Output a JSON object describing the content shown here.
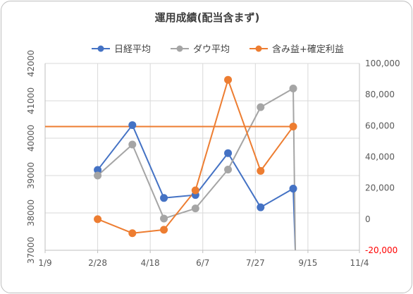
{
  "chart_data": {
    "type": "line",
    "title": "運用成績(配当含まず)",
    "x_tick_labels": [
      "1/9",
      "2/28",
      "4/18",
      "6/7",
      "7/27",
      "9/15",
      "11/4"
    ],
    "x_tick_values": [
      0,
      50,
      100,
      150,
      200,
      250,
      299
    ],
    "xlim": [
      0,
      299
    ],
    "ylim_left": [
      37000,
      42000
    ],
    "y_left_tick_labels": [
      "37000",
      "38000",
      "39000",
      "40000",
      "41000",
      "42000"
    ],
    "ylim_right": [
      -20000,
      100000
    ],
    "y_right_tick_labels": [
      "-20,000",
      "0",
      "20,000",
      "40,000",
      "60,000",
      "80,000",
      "100,000"
    ],
    "grid": true,
    "legend_position": "top",
    "series": [
      {
        "name": "日経平均",
        "axis": "left",
        "color": "#4472c4",
        "marker": true,
        "x": [
          50,
          83,
          113,
          143,
          174,
          205,
          236,
          238
        ],
        "y": [
          39150,
          40350,
          38400,
          38480,
          39600,
          38150,
          38650,
          37000
        ]
      },
      {
        "name": "ダウ平均",
        "axis": "left",
        "color": "#a5a5a5",
        "marker": true,
        "x": [
          50,
          83,
          113,
          143,
          174,
          205,
          236,
          238
        ],
        "y": [
          39000,
          39830,
          37850,
          38120,
          39160,
          40830,
          41330,
          37000
        ]
      },
      {
        "name": "含み益+確定利益",
        "axis": "right",
        "color": "#ed7d31",
        "marker": true,
        "x": [
          50,
          83,
          113,
          143,
          174,
          205,
          236
        ],
        "y": [
          0,
          -9000,
          -6800,
          18500,
          89500,
          31000,
          59500
        ]
      },
      {
        "name": "",
        "axis": "right",
        "color": "#ed7d31",
        "marker": false,
        "x": [
          0,
          236
        ],
        "y": [
          59500,
          59500
        ]
      }
    ]
  }
}
